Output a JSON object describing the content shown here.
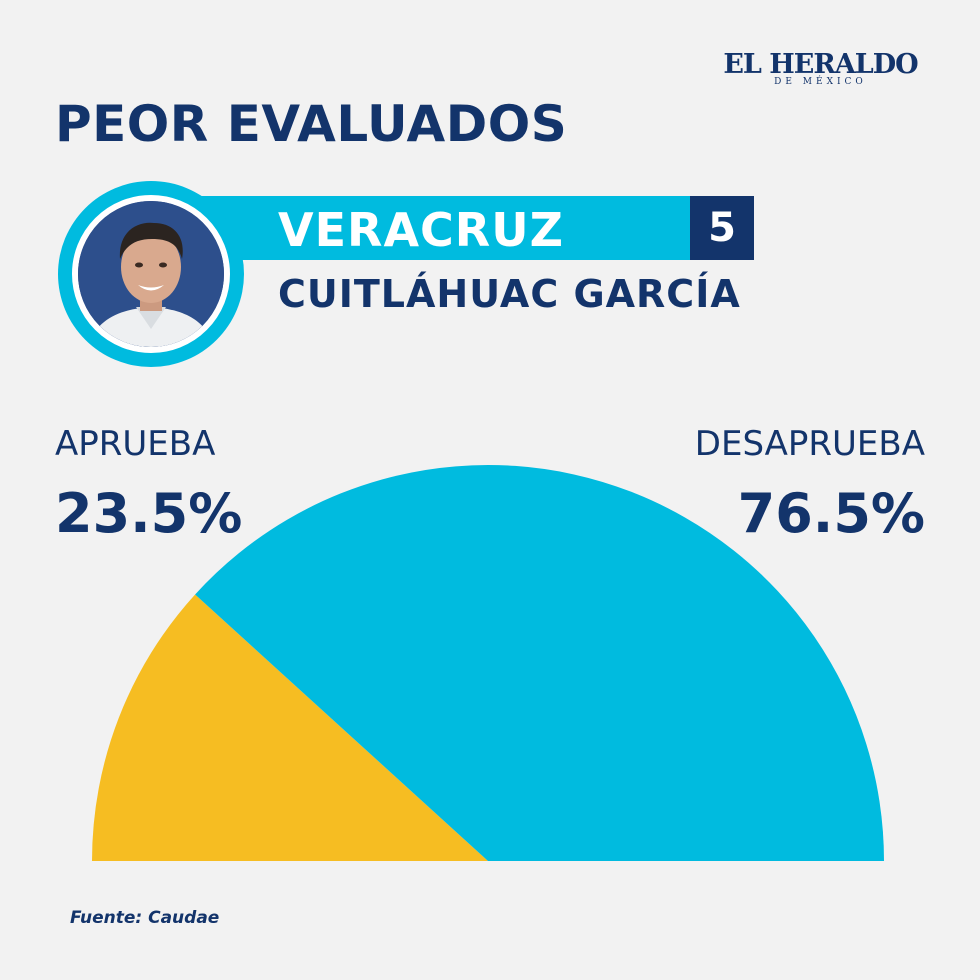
{
  "brand": {
    "name": "EL HERALDO",
    "subtitle": "DE MÉXICO"
  },
  "headline": "PEOR EVALUADOS",
  "profile": {
    "state": "VERACRUZ",
    "rank": "5",
    "governor": "CUITLÁHUAC GARCÍA"
  },
  "chart_data": {
    "type": "pie",
    "style": "semicircle",
    "categories": [
      "APRUEBA",
      "DESAPRUEBA"
    ],
    "values": [
      23.5,
      76.5
    ],
    "value_labels": [
      "23.5%",
      "76.5%"
    ],
    "colors": [
      "#f6bd22",
      "#00bbdf"
    ]
  },
  "source": "Fuente: Caudae",
  "colors": {
    "navy": "#13346b",
    "cyan": "#00bbdf",
    "yellow": "#f6bd22",
    "background": "#f2f2f2"
  }
}
